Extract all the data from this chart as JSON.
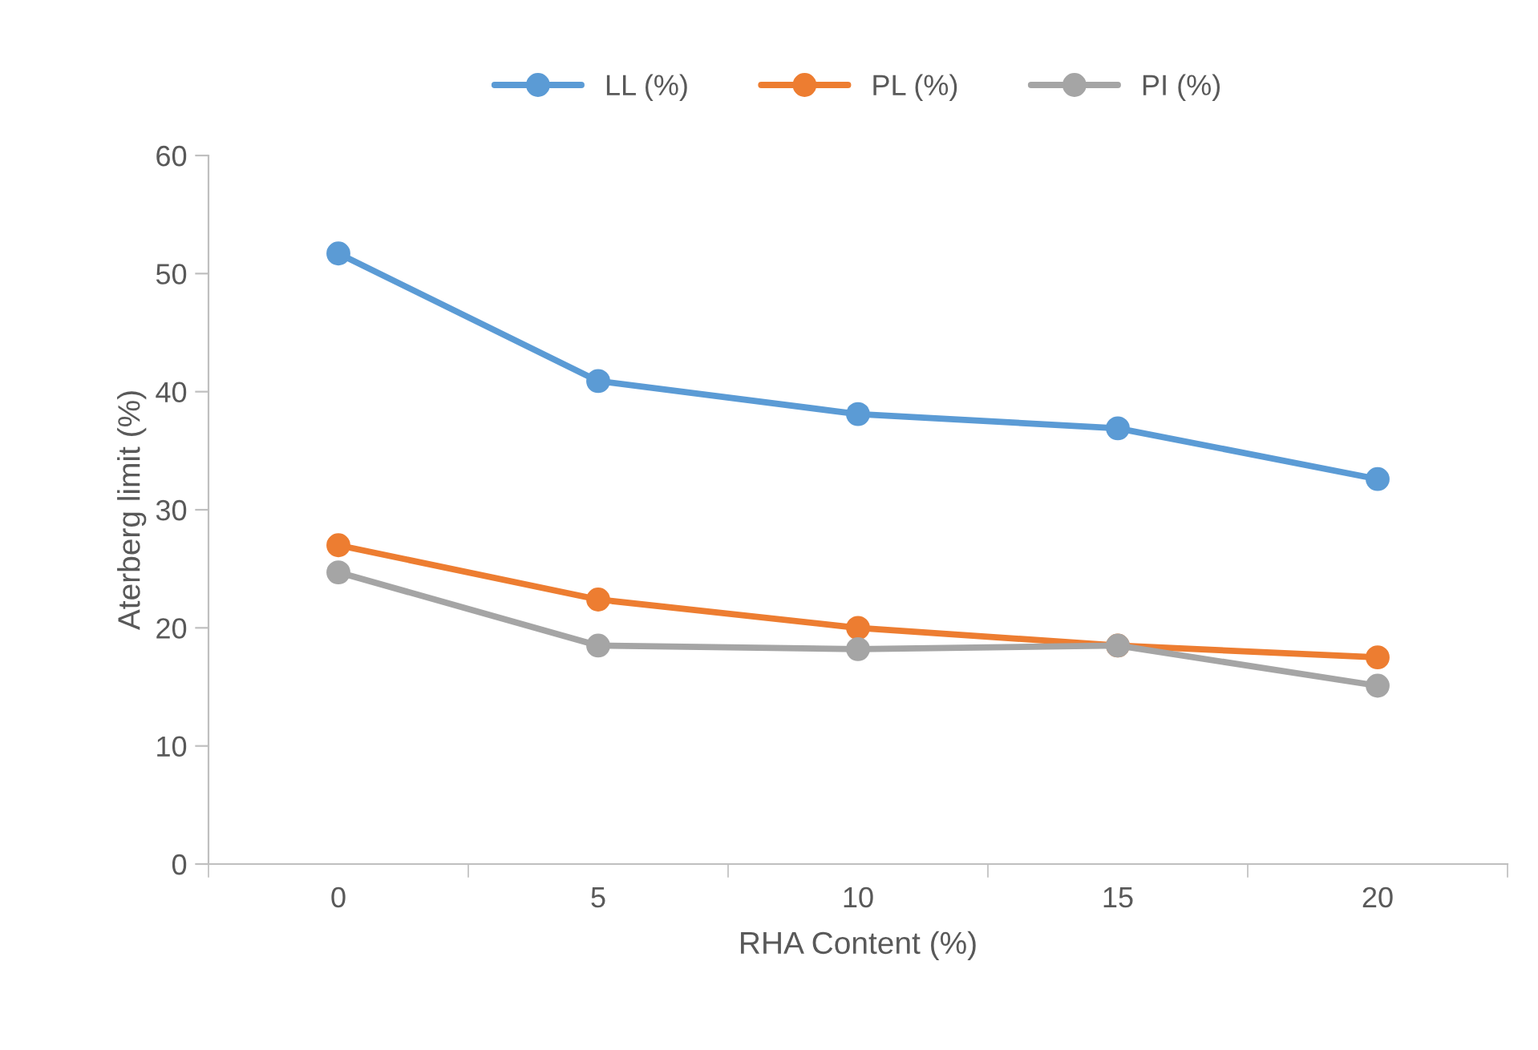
{
  "chart_data": {
    "type": "line",
    "xlabel": "RHA Content (%)",
    "ylabel": "Aterberg limit (%)",
    "categories": [
      "0",
      "5",
      "10",
      "15",
      "20"
    ],
    "series": [
      {
        "name": "LL (%)",
        "color": "#5b9bd5",
        "values": [
          51.7,
          40.9,
          38.1,
          36.9,
          32.6
        ]
      },
      {
        "name": "PL (%)",
        "color": "#ed7d31",
        "values": [
          27.0,
          22.4,
          20.0,
          18.5,
          17.5
        ]
      },
      {
        "name": "PI (%)",
        "color": "#a5a5a5",
        "values": [
          24.7,
          18.5,
          18.2,
          18.5,
          15.1
        ]
      }
    ],
    "ylim": [
      0,
      60
    ],
    "yticks": [
      0,
      10,
      20,
      30,
      40,
      50,
      60
    ],
    "grid": false,
    "legend": "top",
    "marker": "circle",
    "line_style": "solid"
  }
}
